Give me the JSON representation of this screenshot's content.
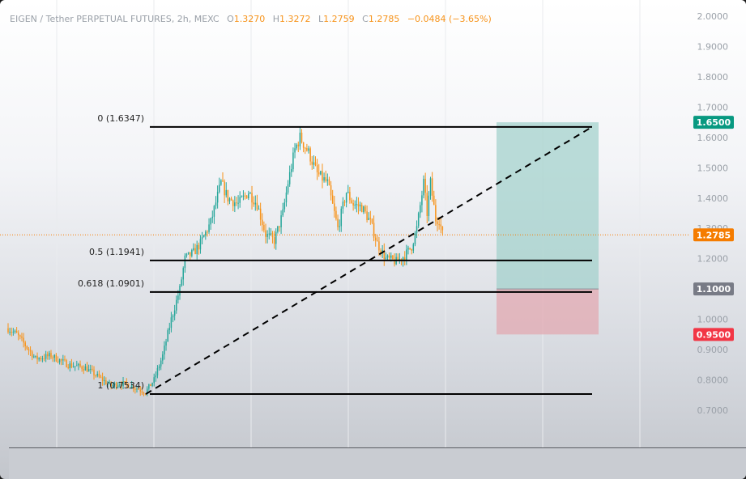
{
  "header": {
    "symbol": "EIGEN / Tether PERPETUAL FUTURES, 2h, MEXC",
    "open_label": "O",
    "open": "1.3270",
    "high_label": "H",
    "high": "1.3272",
    "low_label": "L",
    "low": "1.2759",
    "close_label": "C",
    "close": "1.2785",
    "change": "−0.0484 (−3.65%)"
  },
  "colors": {
    "up": "#26a69a",
    "down": "#f7931a",
    "fib_line": "#000000",
    "target_zone": "#9fd0cb",
    "stop_zone": "#e3a5ae",
    "badge_target": "#089981",
    "badge_entry": "#787b86",
    "badge_stop": "#f23645",
    "badge_price": "#f57c00"
  },
  "chart_data": {
    "type": "candlestick",
    "ylim": [
      0.65,
      2.0
    ],
    "y_ticks": [
      "2.0000",
      "1.9000",
      "1.8000",
      "1.7000",
      "1.6000",
      "1.5000",
      "1.4000",
      "1.3000",
      "1.2000",
      "1.1000",
      "1.0000",
      "0.9000",
      "0.8000",
      "0.7000"
    ],
    "last_price": 1.2785,
    "last_price_label": "1.2785",
    "fib_levels": [
      {
        "label": "0 (1.6347)",
        "value": 1.6347
      },
      {
        "label": "0.5 (1.1941)",
        "value": 1.1941
      },
      {
        "label": "0.618 (1.0901)",
        "value": 1.0901
      },
      {
        "label": "1 (0.7534)",
        "value": 0.7534
      }
    ],
    "trend_line": {
      "from": 0.7534,
      "to": 1.6347
    },
    "position": {
      "target": 1.65,
      "target_label": "1.6500",
      "entry": 1.1,
      "entry_label": "1.1000",
      "stop": 0.95,
      "stop_label": "0.9500"
    },
    "anchors": [
      [
        0,
        0.97
      ],
      [
        5,
        0.95
      ],
      [
        12,
        0.9
      ],
      [
        16,
        0.87
      ],
      [
        25,
        0.88
      ],
      [
        35,
        0.85
      ],
      [
        45,
        0.84
      ],
      [
        55,
        0.8
      ],
      [
        60,
        0.78
      ],
      [
        65,
        0.79
      ],
      [
        72,
        0.78
      ],
      [
        80,
        0.76
      ],
      [
        85,
        0.8
      ],
      [
        90,
        0.88
      ],
      [
        95,
        1.0
      ],
      [
        100,
        1.1
      ],
      [
        103,
        1.2
      ],
      [
        108,
        1.22
      ],
      [
        112,
        1.25
      ],
      [
        118,
        1.32
      ],
      [
        124,
        1.45
      ],
      [
        128,
        1.4
      ],
      [
        134,
        1.38
      ],
      [
        140,
        1.42
      ],
      [
        145,
        1.38
      ],
      [
        150,
        1.28
      ],
      [
        155,
        1.26
      ],
      [
        160,
        1.35
      ],
      [
        163,
        1.45
      ],
      [
        167,
        1.56
      ],
      [
        170,
        1.6
      ],
      [
        175,
        1.55
      ],
      [
        180,
        1.48
      ],
      [
        186,
        1.45
      ],
      [
        192,
        1.3
      ],
      [
        197,
        1.42
      ],
      [
        201,
        1.38
      ],
      [
        206,
        1.37
      ],
      [
        211,
        1.32
      ],
      [
        215,
        1.25
      ],
      [
        220,
        1.2
      ],
      [
        226,
        1.19
      ],
      [
        231,
        1.21
      ],
      [
        235,
        1.24
      ],
      [
        238,
        1.3
      ],
      [
        242,
        1.45
      ],
      [
        244,
        1.35
      ],
      [
        246,
        1.45
      ],
      [
        249,
        1.33
      ],
      [
        251,
        1.33
      ],
      [
        253,
        1.28
      ]
    ]
  }
}
